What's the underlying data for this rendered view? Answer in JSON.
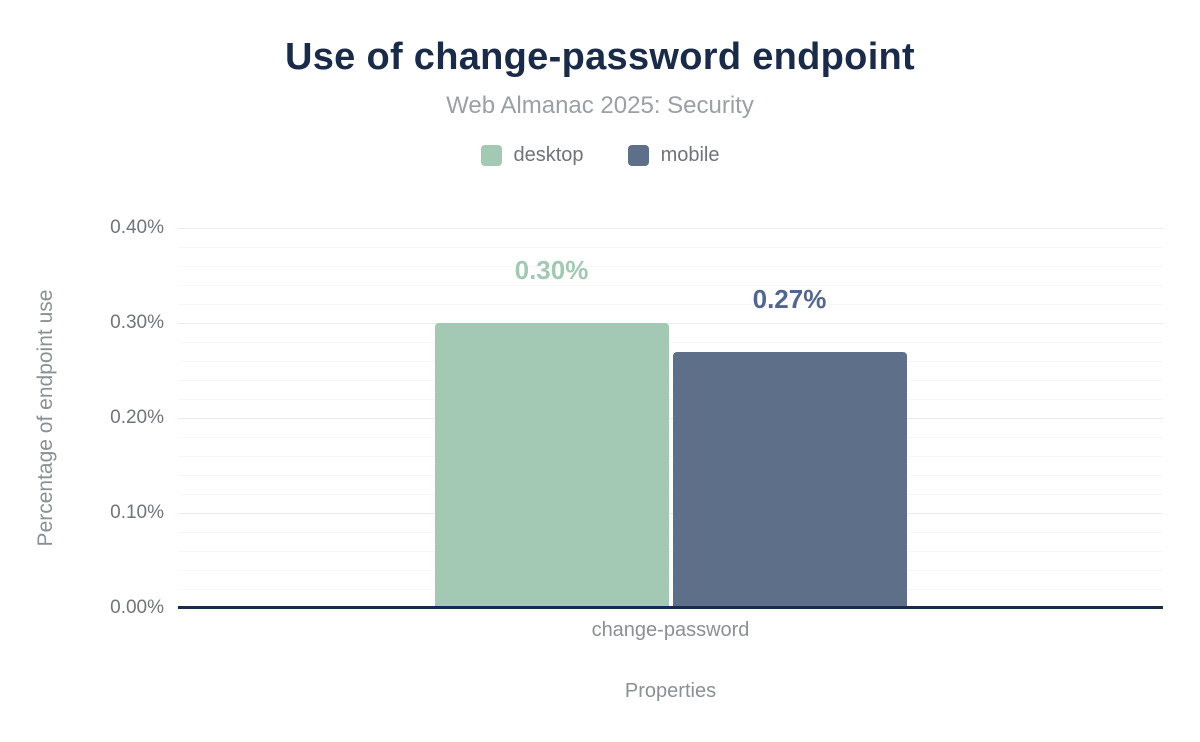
{
  "title": "Use of change-password endpoint",
  "subtitle": "Web Almanac 2025: Security",
  "chart_data": {
    "type": "bar",
    "title": "Use of change-password endpoint",
    "subtitle": "Web Almanac 2025: Security",
    "categories": [
      "change-password"
    ],
    "series": [
      {
        "name": "desktop",
        "values": [
          0.3
        ],
        "data_labels": [
          "0.30%"
        ],
        "color": "#a3c8b4",
        "label_color": "#a3c8b4"
      },
      {
        "name": "mobile",
        "values": [
          0.27
        ],
        "data_labels": [
          "0.27%"
        ],
        "color": "#5e7089",
        "label_color": "#53678e"
      }
    ],
    "xlabel": "Properties",
    "ylabel": "Percentage of endpoint use",
    "ylim": [
      0,
      0.4
    ],
    "yticks": [
      {
        "value": 0.0,
        "label": "0.00%"
      },
      {
        "value": 0.1,
        "label": "0.10%"
      },
      {
        "value": 0.2,
        "label": "0.20%"
      },
      {
        "value": 0.3,
        "label": "0.30%"
      },
      {
        "value": 0.4,
        "label": "0.40%"
      }
    ],
    "minor_tick_step": 0.02,
    "grid": "horizontal-major-and-minor",
    "legend_position": "top",
    "axis_line_color": "#1a2b49",
    "major_grid_color": "#ebebeb",
    "minor_grid_color": "#f7f7f7"
  },
  "legend": {
    "items": [
      {
        "label": "desktop",
        "color": "#a3c8b4"
      },
      {
        "label": "mobile",
        "color": "#5e7089"
      }
    ]
  }
}
